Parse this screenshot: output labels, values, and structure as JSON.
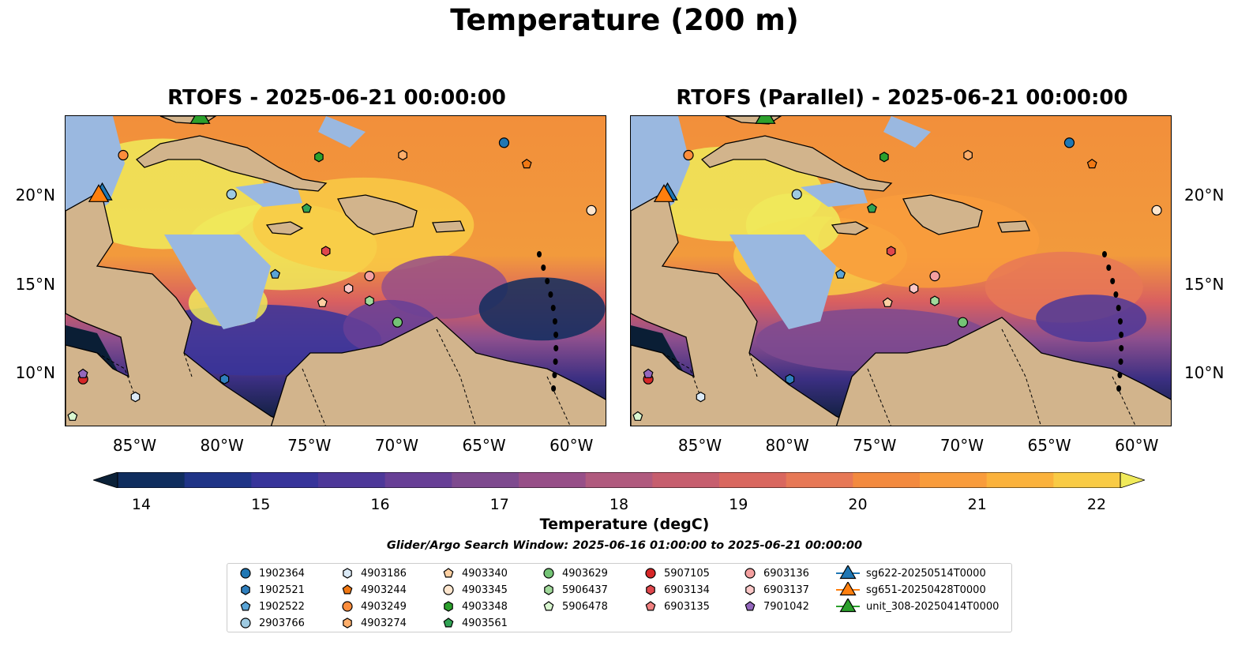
{
  "title": "Temperature (200 m)",
  "panels": [
    {
      "title": "RTOFS - 2025-06-21 00:00:00"
    },
    {
      "title": "RTOFS (Parallel) - 2025-06-21 00:00:00"
    }
  ],
  "x_ticks": [
    "85°W",
    "80°W",
    "75°W",
    "70°W",
    "65°W",
    "60°W"
  ],
  "y_ticks": [
    "20°N",
    "15°N",
    "10°N"
  ],
  "colorbar": {
    "label": "Temperature (degC)",
    "min": 14,
    "max": 22,
    "ticks": [
      "14",
      "15",
      "16",
      "17",
      "18",
      "19",
      "20",
      "21",
      "22"
    ],
    "colors": [
      "#0b2138",
      "#0f2d5e",
      "#1f3487",
      "#37349a",
      "#4d3899",
      "#673f96",
      "#7e4a8f",
      "#974f88",
      "#b05a7e",
      "#c65e6e",
      "#d9675f",
      "#e77856",
      "#f38a3f",
      "#f99c3c",
      "#fbb23c",
      "#f9cb45",
      "#f0ea5a"
    ]
  },
  "search_window": "Glider/Argo Search Window: 2025-06-16 01:00:00 to 2025-06-21 00:00:00",
  "map_colors": {
    "land": "#d2b48c",
    "shelf": "#9ab8e0",
    "warm": "#f5ee55"
  },
  "legend": [
    {
      "label": "1902364",
      "marker": "circle",
      "color": "#1f77b4"
    },
    {
      "label": "1902521",
      "marker": "hexagon",
      "color": "#2f7fbd"
    },
    {
      "label": "1902522",
      "marker": "pentagon",
      "color": "#5aa4d6"
    },
    {
      "label": "2903766",
      "marker": "circle",
      "color": "#9ecae1"
    },
    {
      "label": "4903186",
      "marker": "hexagon",
      "color": "#dbeaf7"
    },
    {
      "label": "4903244",
      "marker": "pentagon",
      "color": "#f07814"
    },
    {
      "label": "4903249",
      "marker": "circle",
      "color": "#fd8d3c"
    },
    {
      "label": "4903274",
      "marker": "hexagon",
      "color": "#fdae6b"
    },
    {
      "label": "4903340",
      "marker": "pentagon",
      "color": "#fdd0a2"
    },
    {
      "label": "4903345",
      "marker": "circle",
      "color": "#fee6ce"
    },
    {
      "label": "4903348",
      "marker": "hexagon",
      "color": "#2ca02c"
    },
    {
      "label": "4903561",
      "marker": "pentagon",
      "color": "#31a354"
    },
    {
      "label": "4903629",
      "marker": "circle",
      "color": "#74c476"
    },
    {
      "label": "5906437",
      "marker": "hexagon",
      "color": "#a1d99b"
    },
    {
      "label": "5906478",
      "marker": "pentagon",
      "color": "#d9f7d0"
    },
    {
      "label": "5907105",
      "marker": "circle",
      "color": "#d62728"
    },
    {
      "label": "6903134",
      "marker": "hexagon",
      "color": "#e0474c"
    },
    {
      "label": "6903135",
      "marker": "pentagon",
      "color": "#f08080"
    },
    {
      "label": "6903136",
      "marker": "circle",
      "color": "#f4a0a0"
    },
    {
      "label": "6903137",
      "marker": "hexagon",
      "color": "#fcc8c8"
    },
    {
      "label": "7901042",
      "marker": "pentagon",
      "color": "#9467bd"
    },
    {
      "label": "sg622-20250514T0000",
      "marker": "triangle",
      "color": "#1f77b4"
    },
    {
      "label": "sg651-20250428T0000",
      "marker": "triangle",
      "color": "#ff7f0e"
    },
    {
      "label": "unit_308-20250414T0000",
      "marker": "triangle",
      "color": "#2ca02c"
    }
  ],
  "chart_data": {
    "type": "heatmap",
    "variable": "Temperature (200 m)",
    "units": "degC",
    "xlim": [
      -89,
      -58
    ],
    "ylim": [
      7,
      24.5
    ],
    "platforms": [
      {
        "id": "1902364",
        "lon": -63.9,
        "lat": 23.0
      },
      {
        "id": "2903766",
        "lon": -79.5,
        "lat": 20.1
      },
      {
        "id": "4903186",
        "lon": -85.0,
        "lat": 8.7
      },
      {
        "id": "4903244",
        "lon": -62.6,
        "lat": 21.8
      },
      {
        "id": "4903249",
        "lon": -85.7,
        "lat": 22.3
      },
      {
        "id": "4903274",
        "lon": -69.7,
        "lat": 22.3
      },
      {
        "id": "4903340",
        "lon": -74.3,
        "lat": 14.0
      },
      {
        "id": "4903345",
        "lon": -58.9,
        "lat": 19.2
      },
      {
        "id": "4903348",
        "lon": -74.5,
        "lat": 22.2
      },
      {
        "id": "4903561",
        "lon": -75.2,
        "lat": 19.3
      },
      {
        "id": "4903629",
        "lon": -70.0,
        "lat": 12.9
      },
      {
        "id": "5906437",
        "lon": -71.6,
        "lat": 14.1
      },
      {
        "id": "5906478",
        "lon": -88.6,
        "lat": 7.6
      },
      {
        "id": "5907105",
        "lon": -88.0,
        "lat": 9.7
      },
      {
        "id": "6903134",
        "lon": -74.1,
        "lat": 16.9
      },
      {
        "id": "6903136",
        "lon": -71.6,
        "lat": 15.5
      },
      {
        "id": "6903137",
        "lon": -72.8,
        "lat": 14.8
      },
      {
        "id": "7901042",
        "lon": -88.0,
        "lat": 10.0
      },
      {
        "id": "1902522",
        "lon": -77.0,
        "lat": 15.6
      },
      {
        "id": "1902521",
        "lon": -79.9,
        "lat": 9.7
      },
      {
        "id": "sg622-20250514T0000",
        "lon": -86.9,
        "lat": 20.1
      },
      {
        "id": "sg651-20250428T0000",
        "lon": -87.1,
        "lat": 20.0
      },
      {
        "id": "unit_308-20250414T0000",
        "lon": -81.3,
        "lat": 24.4
      }
    ]
  }
}
